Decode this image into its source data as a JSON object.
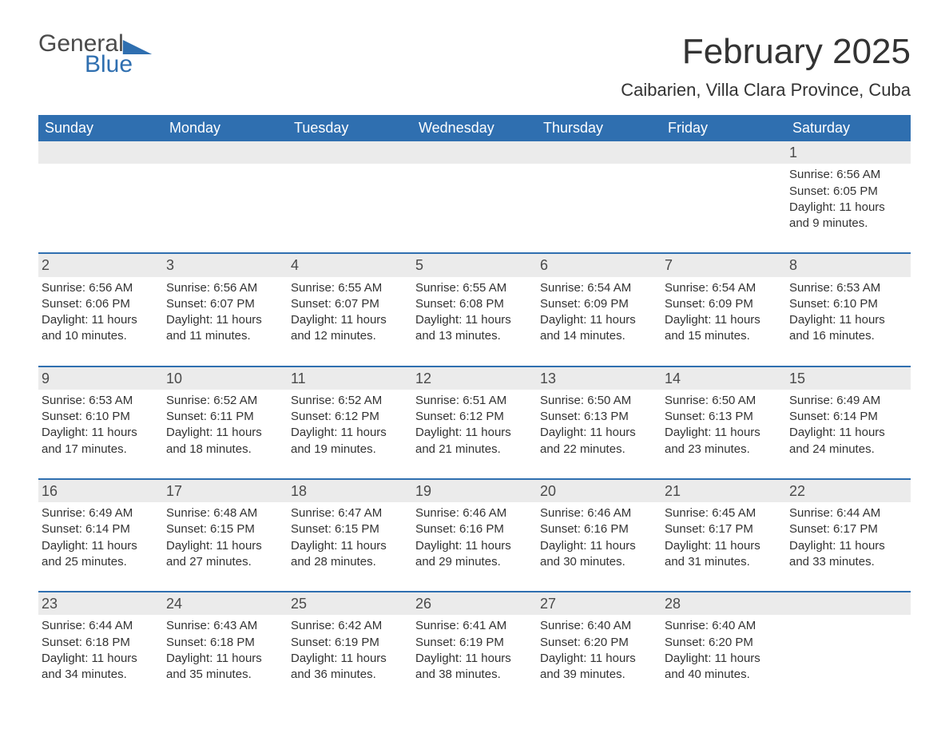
{
  "brand": {
    "word1": "General",
    "word2": "Blue"
  },
  "title": "February 2025",
  "location": "Caibarien, Villa Clara Province, Cuba",
  "colors": {
    "header_bg": "#2f6fb0",
    "header_text": "#ffffff",
    "daynum_bg": "#ebebeb",
    "daynum_border": "#2f6fb0",
    "body_text": "#333333",
    "logo_gray": "#4a4a4a",
    "logo_blue": "#2f6fb0",
    "page_bg": "#ffffff"
  },
  "typography": {
    "title_fontsize": 44,
    "location_fontsize": 22,
    "dow_fontsize": 18,
    "daynum_fontsize": 18,
    "body_fontsize": 15
  },
  "days_of_week": [
    "Sunday",
    "Monday",
    "Tuesday",
    "Wednesday",
    "Thursday",
    "Friday",
    "Saturday"
  ],
  "weeks": [
    [
      {
        "blank": true
      },
      {
        "blank": true
      },
      {
        "blank": true
      },
      {
        "blank": true
      },
      {
        "blank": true
      },
      {
        "blank": true
      },
      {
        "n": "1",
        "sunrise": "Sunrise: 6:56 AM",
        "sunset": "Sunset: 6:05 PM",
        "daylight": "Daylight: 11 hours and 9 minutes."
      }
    ],
    [
      {
        "n": "2",
        "sunrise": "Sunrise: 6:56 AM",
        "sunset": "Sunset: 6:06 PM",
        "daylight": "Daylight: 11 hours and 10 minutes."
      },
      {
        "n": "3",
        "sunrise": "Sunrise: 6:56 AM",
        "sunset": "Sunset: 6:07 PM",
        "daylight": "Daylight: 11 hours and 11 minutes."
      },
      {
        "n": "4",
        "sunrise": "Sunrise: 6:55 AM",
        "sunset": "Sunset: 6:07 PM",
        "daylight": "Daylight: 11 hours and 12 minutes."
      },
      {
        "n": "5",
        "sunrise": "Sunrise: 6:55 AM",
        "sunset": "Sunset: 6:08 PM",
        "daylight": "Daylight: 11 hours and 13 minutes."
      },
      {
        "n": "6",
        "sunrise": "Sunrise: 6:54 AM",
        "sunset": "Sunset: 6:09 PM",
        "daylight": "Daylight: 11 hours and 14 minutes."
      },
      {
        "n": "7",
        "sunrise": "Sunrise: 6:54 AM",
        "sunset": "Sunset: 6:09 PM",
        "daylight": "Daylight: 11 hours and 15 minutes."
      },
      {
        "n": "8",
        "sunrise": "Sunrise: 6:53 AM",
        "sunset": "Sunset: 6:10 PM",
        "daylight": "Daylight: 11 hours and 16 minutes."
      }
    ],
    [
      {
        "n": "9",
        "sunrise": "Sunrise: 6:53 AM",
        "sunset": "Sunset: 6:10 PM",
        "daylight": "Daylight: 11 hours and 17 minutes."
      },
      {
        "n": "10",
        "sunrise": "Sunrise: 6:52 AM",
        "sunset": "Sunset: 6:11 PM",
        "daylight": "Daylight: 11 hours and 18 minutes."
      },
      {
        "n": "11",
        "sunrise": "Sunrise: 6:52 AM",
        "sunset": "Sunset: 6:12 PM",
        "daylight": "Daylight: 11 hours and 19 minutes."
      },
      {
        "n": "12",
        "sunrise": "Sunrise: 6:51 AM",
        "sunset": "Sunset: 6:12 PM",
        "daylight": "Daylight: 11 hours and 21 minutes."
      },
      {
        "n": "13",
        "sunrise": "Sunrise: 6:50 AM",
        "sunset": "Sunset: 6:13 PM",
        "daylight": "Daylight: 11 hours and 22 minutes."
      },
      {
        "n": "14",
        "sunrise": "Sunrise: 6:50 AM",
        "sunset": "Sunset: 6:13 PM",
        "daylight": "Daylight: 11 hours and 23 minutes."
      },
      {
        "n": "15",
        "sunrise": "Sunrise: 6:49 AM",
        "sunset": "Sunset: 6:14 PM",
        "daylight": "Daylight: 11 hours and 24 minutes."
      }
    ],
    [
      {
        "n": "16",
        "sunrise": "Sunrise: 6:49 AM",
        "sunset": "Sunset: 6:14 PM",
        "daylight": "Daylight: 11 hours and 25 minutes."
      },
      {
        "n": "17",
        "sunrise": "Sunrise: 6:48 AM",
        "sunset": "Sunset: 6:15 PM",
        "daylight": "Daylight: 11 hours and 27 minutes."
      },
      {
        "n": "18",
        "sunrise": "Sunrise: 6:47 AM",
        "sunset": "Sunset: 6:15 PM",
        "daylight": "Daylight: 11 hours and 28 minutes."
      },
      {
        "n": "19",
        "sunrise": "Sunrise: 6:46 AM",
        "sunset": "Sunset: 6:16 PM",
        "daylight": "Daylight: 11 hours and 29 minutes."
      },
      {
        "n": "20",
        "sunrise": "Sunrise: 6:46 AM",
        "sunset": "Sunset: 6:16 PM",
        "daylight": "Daylight: 11 hours and 30 minutes."
      },
      {
        "n": "21",
        "sunrise": "Sunrise: 6:45 AM",
        "sunset": "Sunset: 6:17 PM",
        "daylight": "Daylight: 11 hours and 31 minutes."
      },
      {
        "n": "22",
        "sunrise": "Sunrise: 6:44 AM",
        "sunset": "Sunset: 6:17 PM",
        "daylight": "Daylight: 11 hours and 33 minutes."
      }
    ],
    [
      {
        "n": "23",
        "sunrise": "Sunrise: 6:44 AM",
        "sunset": "Sunset: 6:18 PM",
        "daylight": "Daylight: 11 hours and 34 minutes."
      },
      {
        "n": "24",
        "sunrise": "Sunrise: 6:43 AM",
        "sunset": "Sunset: 6:18 PM",
        "daylight": "Daylight: 11 hours and 35 minutes."
      },
      {
        "n": "25",
        "sunrise": "Sunrise: 6:42 AM",
        "sunset": "Sunset: 6:19 PM",
        "daylight": "Daylight: 11 hours and 36 minutes."
      },
      {
        "n": "26",
        "sunrise": "Sunrise: 6:41 AM",
        "sunset": "Sunset: 6:19 PM",
        "daylight": "Daylight: 11 hours and 38 minutes."
      },
      {
        "n": "27",
        "sunrise": "Sunrise: 6:40 AM",
        "sunset": "Sunset: 6:20 PM",
        "daylight": "Daylight: 11 hours and 39 minutes."
      },
      {
        "n": "28",
        "sunrise": "Sunrise: 6:40 AM",
        "sunset": "Sunset: 6:20 PM",
        "daylight": "Daylight: 11 hours and 40 minutes."
      },
      {
        "blank": true,
        "trailing": true
      }
    ]
  ]
}
